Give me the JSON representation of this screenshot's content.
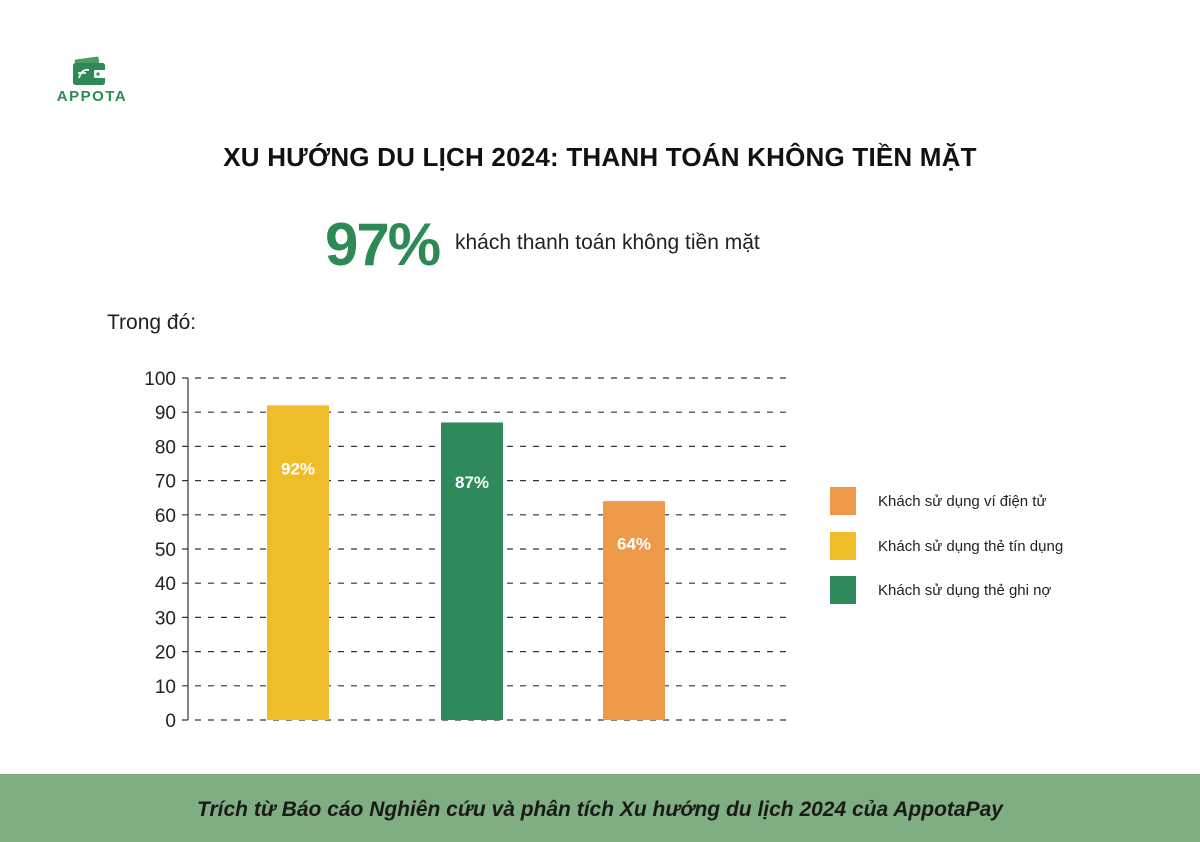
{
  "brand": {
    "name": "APPOTA",
    "icon": "wallet-logo-icon",
    "color": "#2e8a55"
  },
  "title": "XU HƯỚNG DU LỊCH 2024: THANH TOÁN KHÔNG TIỀN MẶT",
  "headline": {
    "value": "97%",
    "text": "khách thanh toán không tiền mặt"
  },
  "subheading": "Trong đó:",
  "chart_data": {
    "type": "bar",
    "title": "",
    "xlabel": "",
    "ylabel": "",
    "ylim": [
      0,
      100
    ],
    "yticks": [
      0,
      10,
      20,
      30,
      40,
      50,
      60,
      70,
      80,
      90,
      100
    ],
    "grid": true,
    "grid_style": "dashed",
    "legend_position": "right",
    "series": [
      {
        "name": "Khách sử dụng thẻ tín dụng",
        "value": 92,
        "label": "92%",
        "color": "#efbd2a"
      },
      {
        "name": "Khách sử dụng thẻ ghi nợ",
        "value": 87,
        "label": "87%",
        "color": "#2e8a5a"
      },
      {
        "name": "Khách sử dụng ví điện tử",
        "value": 64,
        "label": "64%",
        "color": "#ec9a47"
      }
    ],
    "legend": [
      {
        "name": "Khách sử dụng ví điện tử",
        "color": "#ec9a47"
      },
      {
        "name": "Khách sử dụng thẻ tín dụng",
        "color": "#efbd2a"
      },
      {
        "name": "Khách sử dụng thẻ ghi nợ",
        "color": "#2e8a5a"
      }
    ]
  },
  "footer": {
    "text": "Trích từ Báo cáo Nghiên cứu và phân tích Xu hướng du lịch 2024 của AppotaPay",
    "color": "#7fae82"
  }
}
